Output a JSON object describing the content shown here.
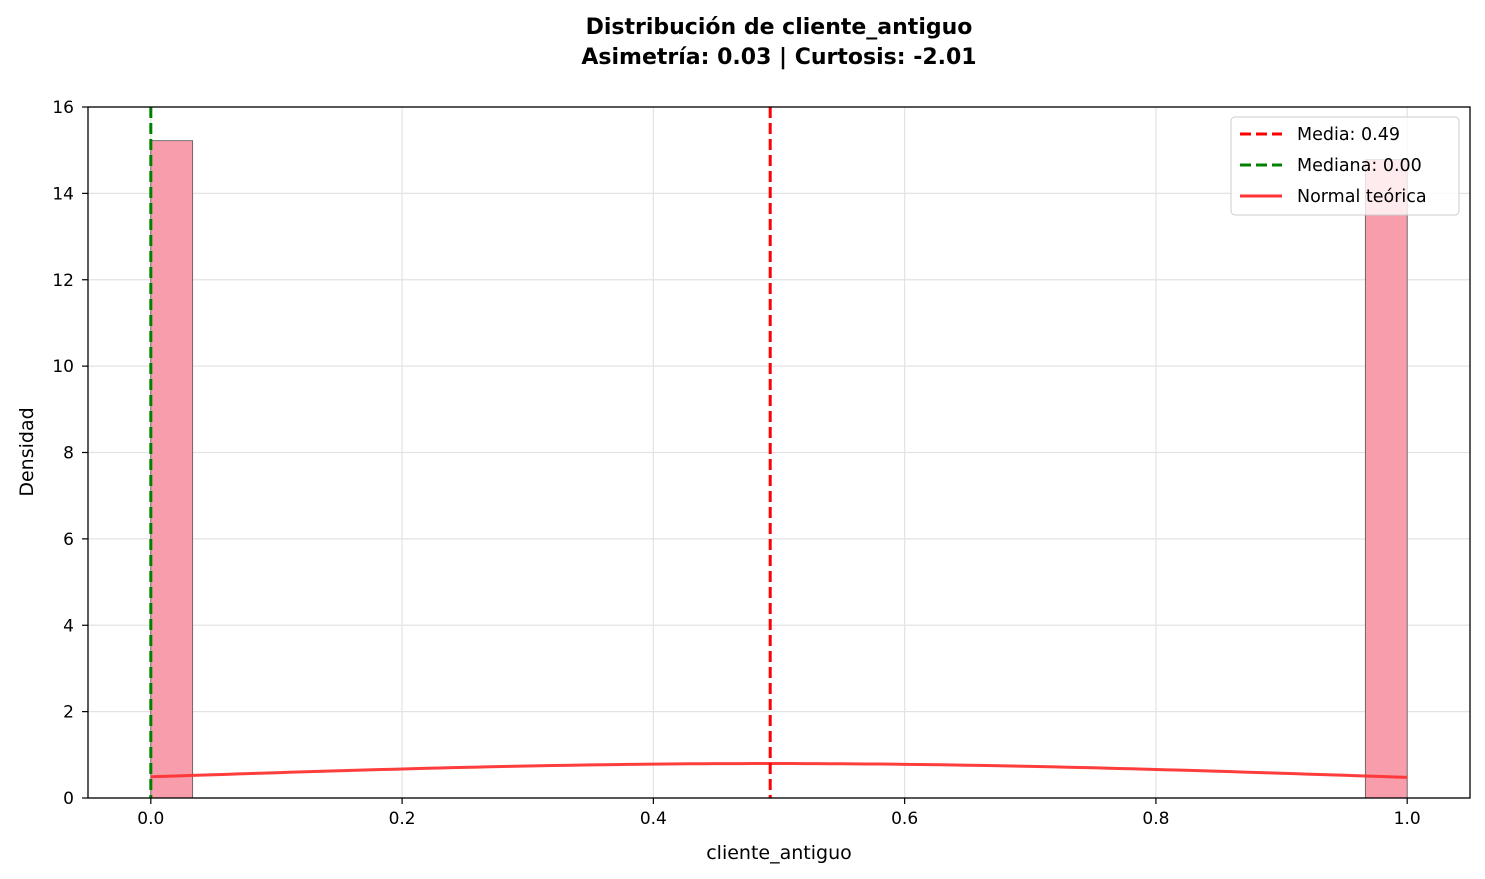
{
  "chart_data": {
    "type": "bar",
    "title": "Distribución de cliente_antiguo",
    "subtitle": "Asimetría: 0.03 | Curtosis: -2.01",
    "xlabel": "cliente_antiguo",
    "ylabel": "Densidad",
    "xlim": [
      -0.05,
      1.05
    ],
    "ylim": [
      0,
      16
    ],
    "xticks": [
      0.0,
      0.2,
      0.4,
      0.6,
      0.8,
      1.0
    ],
    "xtick_labels": [
      "0.0",
      "0.2",
      "0.4",
      "0.6",
      "0.8",
      "1.0"
    ],
    "yticks": [
      0,
      2,
      4,
      6,
      8,
      10,
      12,
      14,
      16
    ],
    "ytick_labels": [
      "0",
      "2",
      "4",
      "6",
      "8",
      "10",
      "12",
      "14",
      "16"
    ],
    "grid": true,
    "legend_position": "top-right",
    "bars": [
      {
        "x0": 0.0,
        "x1": 0.0333,
        "value": 15.22
      },
      {
        "x0": 0.9667,
        "x1": 1.0,
        "value": 14.78
      }
    ],
    "bar_color": "#f89dac",
    "vlines": [
      {
        "name": "Media: 0.49",
        "x": 0.493,
        "color": "#ff0000",
        "style": "dashed"
      },
      {
        "name": "Mediana: 0.00",
        "x": 0.0,
        "color": "#008000",
        "style": "dashed"
      }
    ],
    "normal_curve": {
      "name": "Normal teórica",
      "mean": 0.493,
      "std": 0.5,
      "x_range": [
        0.0,
        1.0
      ],
      "color": "#ff3333"
    },
    "legend": [
      {
        "label": "Media: 0.49",
        "color": "#ff0000",
        "style": "dashed"
      },
      {
        "label": "Mediana: 0.00",
        "color": "#008000",
        "style": "dashed"
      },
      {
        "label": "Normal teórica",
        "color": "#ff3333",
        "style": "solid"
      }
    ]
  }
}
